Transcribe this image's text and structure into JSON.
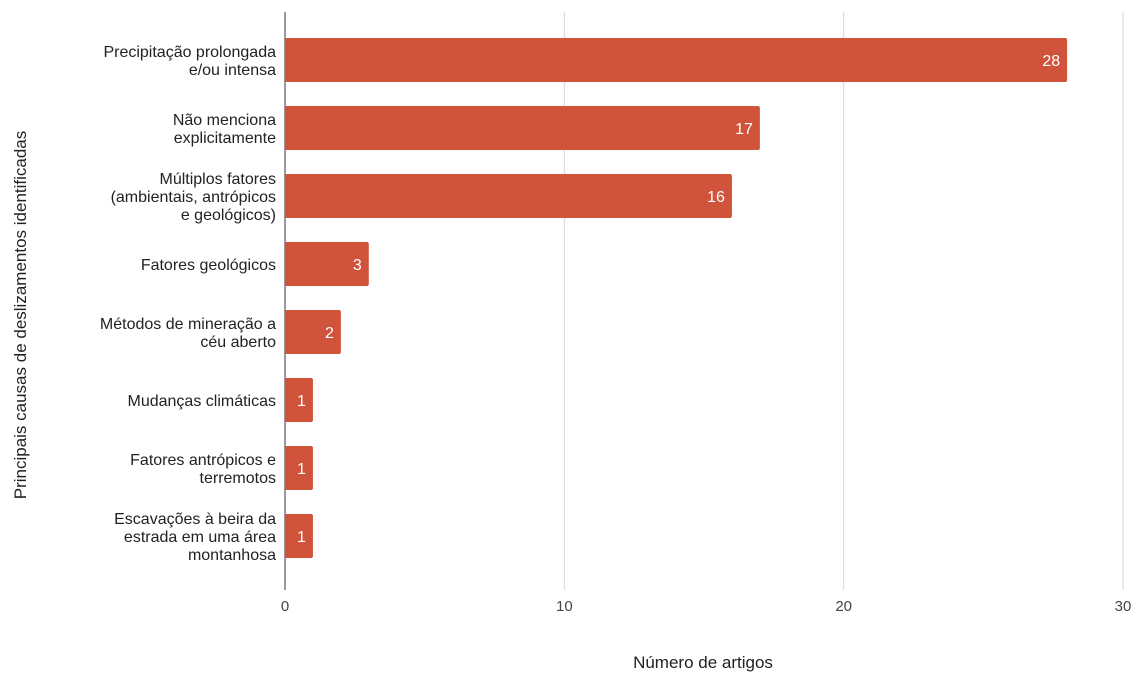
{
  "chart_data": {
    "type": "bar",
    "orientation": "horizontal",
    "title": "",
    "xlabel": "Número de artigos",
    "ylabel": "Principais causas de deslizamentos identificadas",
    "xlim": [
      0,
      30
    ],
    "x_ticks": [
      0,
      10,
      20,
      30
    ],
    "grid": true,
    "bar_color": "#d0533b",
    "data_labels": true,
    "categories": [
      [
        "Precipitação prolongada",
        "e/ou intensa"
      ],
      [
        "Não menciona",
        "explicitamente"
      ],
      [
        "Múltiplos fatores",
        "(ambientais, antrópicos",
        "e geológicos)"
      ],
      [
        "Fatores geológicos"
      ],
      [
        "Métodos de mineração a",
        "céu aberto"
      ],
      [
        "Mudanças climáticas"
      ],
      [
        "Fatores antrópicos e",
        "terremotos"
      ],
      [
        "Escavações à beira da",
        "estrada em uma área",
        "montanhosa"
      ]
    ],
    "values": [
      28,
      17,
      16,
      3,
      2,
      1,
      1,
      1
    ]
  }
}
